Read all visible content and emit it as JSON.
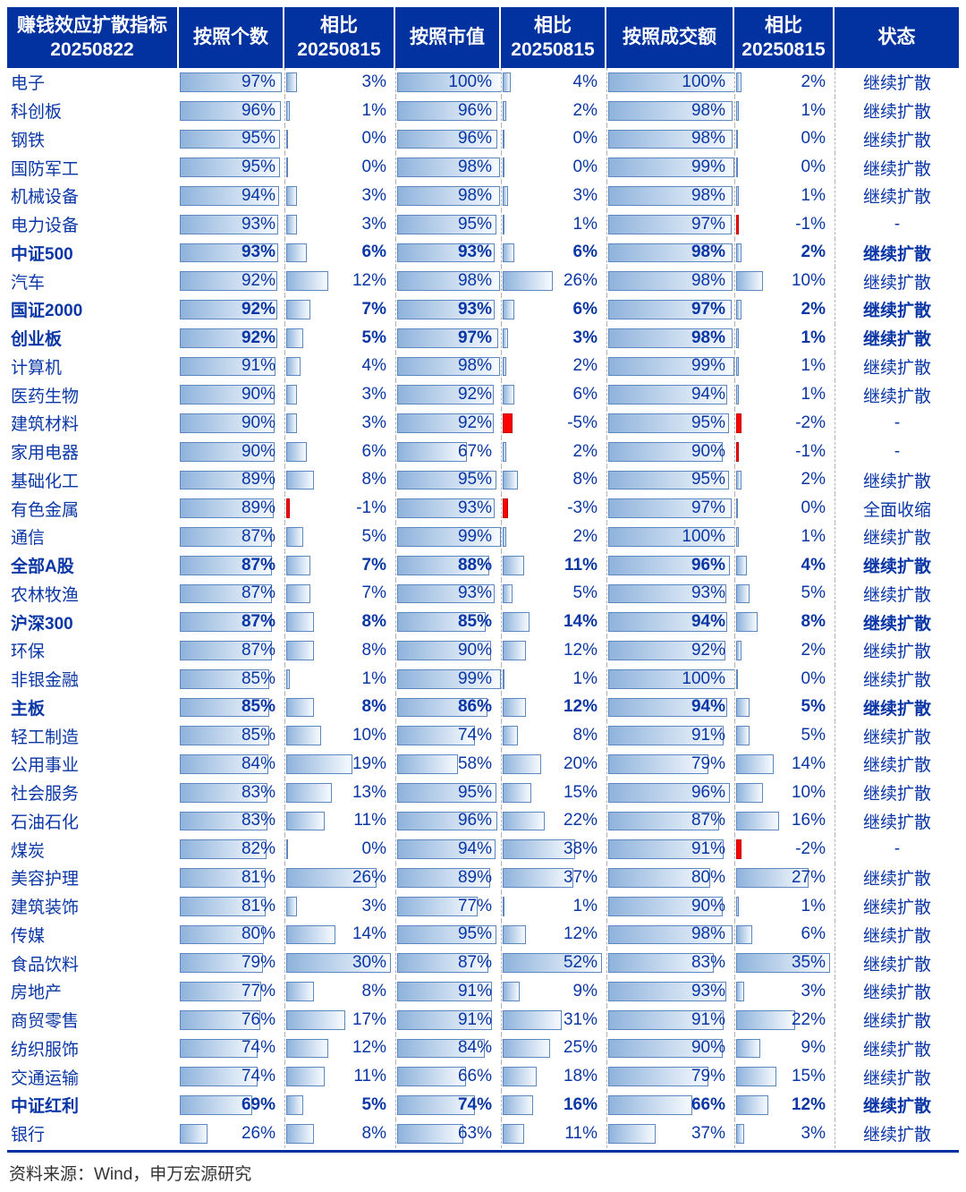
{
  "colors": {
    "header_bg": "#0232a0",
    "body_text": "#0a36a6",
    "bar_border": "#5e87c0",
    "bar_fill_left": "#8fb3dc",
    "negative_bar": "#ff0000"
  },
  "header": {
    "cells": [
      {
        "l1": "赚钱效应扩散指标",
        "l2": "20250822"
      },
      {
        "l1": "按照个数",
        "l2": ""
      },
      {
        "l1": "相比",
        "l2": "20250815"
      },
      {
        "l1": "按照市值",
        "l2": ""
      },
      {
        "l1": "相比",
        "l2": "20250815"
      },
      {
        "l1": "按照成交额",
        "l2": ""
      },
      {
        "l1": "相比",
        "l2": "20250815"
      },
      {
        "l1": "状态",
        "l2": ""
      }
    ]
  },
  "chart_data": {
    "type": "table",
    "title": "赚钱效应扩散指标 20250822",
    "columns": [
      "赚钱效应扩散指标 20250822",
      "按照个数",
      "相比 20250815",
      "按照市值",
      "相比 20250815",
      "按照成交额",
      "相比 20250815",
      "状态"
    ],
    "unit": "%",
    "rows": [
      {
        "name": "电子",
        "count": 97,
        "count_chg": 3,
        "mcap": 100,
        "mcap_chg": 4,
        "turnover": 100,
        "turnover_chg": 2,
        "status": "继续扩散",
        "bold": false
      },
      {
        "name": "科创板",
        "count": 96,
        "count_chg": 1,
        "mcap": 96,
        "mcap_chg": 2,
        "turnover": 98,
        "turnover_chg": 1,
        "status": "继续扩散",
        "bold": false
      },
      {
        "name": "钢铁",
        "count": 95,
        "count_chg": 0,
        "mcap": 96,
        "mcap_chg": 0,
        "turnover": 98,
        "turnover_chg": 0,
        "status": "继续扩散",
        "bold": false
      },
      {
        "name": "国防军工",
        "count": 95,
        "count_chg": 0,
        "mcap": 98,
        "mcap_chg": 0,
        "turnover": 99,
        "turnover_chg": 0,
        "status": "继续扩散",
        "bold": false
      },
      {
        "name": "机械设备",
        "count": 94,
        "count_chg": 3,
        "mcap": 98,
        "mcap_chg": 3,
        "turnover": 98,
        "turnover_chg": 1,
        "status": "继续扩散",
        "bold": false
      },
      {
        "name": "电力设备",
        "count": 93,
        "count_chg": 3,
        "mcap": 95,
        "mcap_chg": 1,
        "turnover": 97,
        "turnover_chg": -1,
        "status": "-",
        "bold": false
      },
      {
        "name": "中证500",
        "count": 93,
        "count_chg": 6,
        "mcap": 93,
        "mcap_chg": 6,
        "turnover": 98,
        "turnover_chg": 2,
        "status": "继续扩散",
        "bold": true
      },
      {
        "name": "汽车",
        "count": 92,
        "count_chg": 12,
        "mcap": 98,
        "mcap_chg": 26,
        "turnover": 98,
        "turnover_chg": 10,
        "status": "继续扩散",
        "bold": false
      },
      {
        "name": "国证2000",
        "count": 92,
        "count_chg": 7,
        "mcap": 93,
        "mcap_chg": 6,
        "turnover": 97,
        "turnover_chg": 2,
        "status": "继续扩散",
        "bold": true
      },
      {
        "name": "创业板",
        "count": 92,
        "count_chg": 5,
        "mcap": 97,
        "mcap_chg": 3,
        "turnover": 98,
        "turnover_chg": 1,
        "status": "继续扩散",
        "bold": true
      },
      {
        "name": "计算机",
        "count": 91,
        "count_chg": 4,
        "mcap": 98,
        "mcap_chg": 2,
        "turnover": 99,
        "turnover_chg": 1,
        "status": "继续扩散",
        "bold": false
      },
      {
        "name": "医药生物",
        "count": 90,
        "count_chg": 3,
        "mcap": 92,
        "mcap_chg": 6,
        "turnover": 94,
        "turnover_chg": 1,
        "status": "继续扩散",
        "bold": false
      },
      {
        "name": "建筑材料",
        "count": 90,
        "count_chg": 3,
        "mcap": 92,
        "mcap_chg": -5,
        "turnover": 95,
        "turnover_chg": -2,
        "status": "-",
        "bold": false
      },
      {
        "name": "家用电器",
        "count": 90,
        "count_chg": 6,
        "mcap": 67,
        "mcap_chg": 2,
        "turnover": 90,
        "turnover_chg": -1,
        "status": "-",
        "bold": false
      },
      {
        "name": "基础化工",
        "count": 89,
        "count_chg": 8,
        "mcap": 95,
        "mcap_chg": 8,
        "turnover": 95,
        "turnover_chg": 2,
        "status": "继续扩散",
        "bold": false
      },
      {
        "name": "有色金属",
        "count": 89,
        "count_chg": -1,
        "mcap": 93,
        "mcap_chg": -3,
        "turnover": 97,
        "turnover_chg": 0,
        "status": "全面收缩",
        "bold": false
      },
      {
        "name": "通信",
        "count": 87,
        "count_chg": 5,
        "mcap": 99,
        "mcap_chg": 2,
        "turnover": 100,
        "turnover_chg": 1,
        "status": "继续扩散",
        "bold": false
      },
      {
        "name": "全部A股",
        "count": 87,
        "count_chg": 7,
        "mcap": 88,
        "mcap_chg": 11,
        "turnover": 96,
        "turnover_chg": 4,
        "status": "继续扩散",
        "bold": true
      },
      {
        "name": "农林牧渔",
        "count": 87,
        "count_chg": 7,
        "mcap": 93,
        "mcap_chg": 5,
        "turnover": 93,
        "turnover_chg": 5,
        "status": "继续扩散",
        "bold": false
      },
      {
        "name": "沪深300",
        "count": 87,
        "count_chg": 8,
        "mcap": 85,
        "mcap_chg": 14,
        "turnover": 94,
        "turnover_chg": 8,
        "status": "继续扩散",
        "bold": true
      },
      {
        "name": "环保",
        "count": 87,
        "count_chg": 8,
        "mcap": 90,
        "mcap_chg": 12,
        "turnover": 92,
        "turnover_chg": 2,
        "status": "继续扩散",
        "bold": false
      },
      {
        "name": "非银金融",
        "count": 85,
        "count_chg": 1,
        "mcap": 99,
        "mcap_chg": 1,
        "turnover": 100,
        "turnover_chg": 0,
        "status": "继续扩散",
        "bold": false
      },
      {
        "name": "主板",
        "count": 85,
        "count_chg": 8,
        "mcap": 86,
        "mcap_chg": 12,
        "turnover": 94,
        "turnover_chg": 5,
        "status": "继续扩散",
        "bold": true
      },
      {
        "name": "轻工制造",
        "count": 85,
        "count_chg": 10,
        "mcap": 74,
        "mcap_chg": 8,
        "turnover": 91,
        "turnover_chg": 5,
        "status": "继续扩散",
        "bold": false
      },
      {
        "name": "公用事业",
        "count": 84,
        "count_chg": 19,
        "mcap": 58,
        "mcap_chg": 20,
        "turnover": 79,
        "turnover_chg": 14,
        "status": "继续扩散",
        "bold": false
      },
      {
        "name": "社会服务",
        "count": 83,
        "count_chg": 13,
        "mcap": 95,
        "mcap_chg": 15,
        "turnover": 96,
        "turnover_chg": 10,
        "status": "继续扩散",
        "bold": false
      },
      {
        "name": "石油石化",
        "count": 83,
        "count_chg": 11,
        "mcap": 96,
        "mcap_chg": 22,
        "turnover": 87,
        "turnover_chg": 16,
        "status": "继续扩散",
        "bold": false
      },
      {
        "name": "煤炭",
        "count": 82,
        "count_chg": 0,
        "mcap": 94,
        "mcap_chg": 38,
        "turnover": 91,
        "turnover_chg": -2,
        "status": "-",
        "bold": false
      },
      {
        "name": "美容护理",
        "count": 81,
        "count_chg": 26,
        "mcap": 89,
        "mcap_chg": 37,
        "turnover": 80,
        "turnover_chg": 27,
        "status": "继续扩散",
        "bold": false
      },
      {
        "name": "建筑装饰",
        "count": 81,
        "count_chg": 3,
        "mcap": 77,
        "mcap_chg": 1,
        "turnover": 90,
        "turnover_chg": 1,
        "status": "继续扩散",
        "bold": false
      },
      {
        "name": "传媒",
        "count": 80,
        "count_chg": 14,
        "mcap": 95,
        "mcap_chg": 12,
        "turnover": 98,
        "turnover_chg": 6,
        "status": "继续扩散",
        "bold": false
      },
      {
        "name": "食品饮料",
        "count": 79,
        "count_chg": 30,
        "mcap": 87,
        "mcap_chg": 52,
        "turnover": 83,
        "turnover_chg": 35,
        "status": "继续扩散",
        "bold": false
      },
      {
        "name": "房地产",
        "count": 77,
        "count_chg": 8,
        "mcap": 91,
        "mcap_chg": 9,
        "turnover": 93,
        "turnover_chg": 3,
        "status": "继续扩散",
        "bold": false
      },
      {
        "name": "商贸零售",
        "count": 76,
        "count_chg": 17,
        "mcap": 91,
        "mcap_chg": 31,
        "turnover": 91,
        "turnover_chg": 22,
        "status": "继续扩散",
        "bold": false
      },
      {
        "name": "纺织服饰",
        "count": 74,
        "count_chg": 12,
        "mcap": 84,
        "mcap_chg": 25,
        "turnover": 90,
        "turnover_chg": 9,
        "status": "继续扩散",
        "bold": false
      },
      {
        "name": "交通运输",
        "count": 74,
        "count_chg": 11,
        "mcap": 66,
        "mcap_chg": 18,
        "turnover": 79,
        "turnover_chg": 15,
        "status": "继续扩散",
        "bold": false
      },
      {
        "name": "中证红利",
        "count": 69,
        "count_chg": 5,
        "mcap": 74,
        "mcap_chg": 16,
        "turnover": 66,
        "turnover_chg": 12,
        "status": "继续扩散",
        "bold": true
      },
      {
        "name": "银行",
        "count": 26,
        "count_chg": 8,
        "mcap": 63,
        "mcap_chg": 11,
        "turnover": 37,
        "turnover_chg": 3,
        "status": "继续扩散",
        "bold": false
      }
    ]
  },
  "footer": {
    "source": "资料来源：Wind，申万宏源研究"
  }
}
